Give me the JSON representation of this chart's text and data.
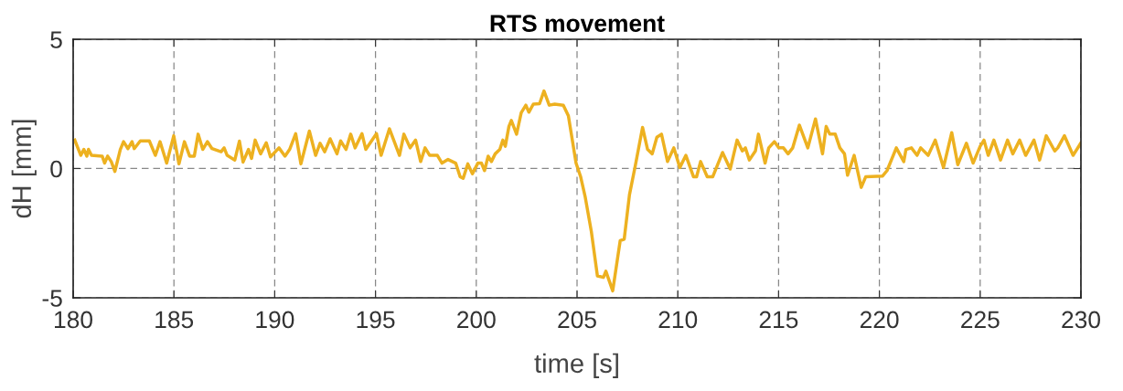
{
  "chart_data": {
    "type": "line",
    "title": "RTS movement",
    "xlabel": "time [s]",
    "ylabel": "dH [mm]",
    "xlim": [
      180,
      230
    ],
    "xticks": [
      180,
      185,
      190,
      195,
      200,
      205,
      210,
      215,
      220,
      225,
      230
    ],
    "ylim": [
      -5,
      5
    ],
    "yticks": [
      -5,
      0,
      5
    ],
    "grid": true,
    "line_style": "solid",
    "marker": "none",
    "series": [
      {
        "color": "#edb120",
        "x": [
          180.08,
          180.38,
          180.53,
          180.68,
          180.76,
          180.91,
          181.44,
          181.56,
          181.71,
          181.89,
          182.07,
          182.34,
          182.5,
          182.72,
          182.92,
          183.03,
          183.33,
          183.78,
          184.08,
          184.31,
          184.64,
          184.99,
          185.25,
          185.52,
          185.78,
          186.01,
          186.2,
          186.43,
          186.66,
          186.89,
          187.34,
          187.49,
          187.64,
          188.02,
          188.25,
          188.43,
          188.7,
          188.85,
          189.03,
          189.3,
          189.58,
          189.79,
          190.21,
          190.51,
          190.74,
          191.04,
          191.3,
          191.72,
          192.03,
          192.25,
          192.48,
          192.75,
          193.09,
          193.27,
          193.54,
          193.77,
          193.99,
          194.33,
          194.52,
          195.05,
          195.28,
          195.69,
          196.19,
          196.41,
          196.72,
          196.99,
          197.24,
          197.46,
          197.69,
          198.07,
          198.3,
          198.6,
          198.98,
          199.2,
          199.35,
          199.58,
          199.81,
          200.08,
          200.26,
          200.41,
          200.59,
          200.75,
          200.94,
          201.17,
          201.32,
          201.44,
          201.62,
          201.74,
          202.0,
          202.23,
          202.46,
          202.61,
          202.83,
          203.14,
          203.36,
          203.62,
          203.89,
          204.32,
          204.57,
          204.95,
          205.18,
          205.4,
          205.71,
          206.01,
          206.31,
          206.43,
          206.77,
          207.14,
          207.34,
          207.6,
          207.9,
          208.25,
          208.5,
          208.73,
          208.96,
          209.19,
          209.49,
          209.8,
          210.1,
          210.4,
          210.78,
          210.93,
          211.13,
          211.46,
          211.73,
          212.22,
          212.6,
          212.94,
          213.2,
          213.35,
          213.55,
          213.85,
          214.0,
          214.33,
          214.51,
          214.79,
          215.01,
          215.24,
          215.47,
          215.7,
          216.03,
          216.45,
          216.83,
          217.18,
          217.36,
          217.54,
          217.81,
          218.04,
          218.27,
          218.42,
          218.75,
          219.1,
          219.32,
          220.16,
          220.38,
          220.84,
          221.21,
          221.32,
          221.59,
          221.87,
          222.05,
          222.42,
          222.77,
          223.18,
          223.59,
          223.89,
          224.32,
          224.65,
          225.0,
          225.19,
          225.4,
          225.68,
          226.01,
          226.36,
          226.62,
          226.96,
          227.26,
          227.67,
          227.95,
          228.28,
          228.7,
          228.85,
          229.18,
          229.61,
          229.99
        ],
        "values": [
          1.1,
          0.51,
          0.74,
          0.48,
          0.74,
          0.51,
          0.48,
          0.21,
          0.48,
          0.27,
          -0.11,
          0.74,
          1.04,
          0.77,
          1.04,
          0.77,
          1.07,
          1.07,
          0.51,
          1.04,
          0.21,
          1.27,
          0.18,
          1.04,
          0.48,
          0.48,
          1.33,
          0.74,
          1.04,
          0.77,
          0.65,
          0.8,
          0.51,
          0.33,
          1.06,
          0.25,
          0.74,
          0.39,
          1.1,
          0.57,
          1.0,
          0.45,
          0.8,
          0.48,
          0.74,
          1.35,
          0.18,
          1.45,
          0.51,
          0.98,
          0.65,
          1.15,
          0.57,
          1.07,
          0.74,
          1.33,
          0.8,
          1.35,
          0.74,
          1.35,
          0.51,
          1.54,
          0.51,
          1.33,
          0.8,
          1.1,
          0.27,
          0.8,
          0.51,
          0.51,
          0.21,
          0.35,
          0.21,
          -0.32,
          -0.38,
          0.18,
          -0.2,
          0.21,
          0.21,
          -0.08,
          0.48,
          0.27,
          0.57,
          0.74,
          1.1,
          0.86,
          1.63,
          1.86,
          1.33,
          2.16,
          2.45,
          2.18,
          2.49,
          2.51,
          3.0,
          2.45,
          2.49,
          2.45,
          2.04,
          0.21,
          -0.32,
          -1.08,
          -2.44,
          -4.15,
          -4.21,
          -3.97,
          -4.73,
          -2.79,
          -2.73,
          -1.02,
          0.15,
          1.59,
          0.74,
          0.57,
          1.21,
          1.33,
          0.27,
          0.8,
          0.04,
          0.51,
          -0.32,
          -0.32,
          0.27,
          -0.32,
          -0.32,
          0.62,
          -0.02,
          1.1,
          0.68,
          0.8,
          0.33,
          0.68,
          1.33,
          0.21,
          0.8,
          1.04,
          0.8,
          0.8,
          0.57,
          0.8,
          1.68,
          0.8,
          1.92,
          0.57,
          1.63,
          1.33,
          1.33,
          0.8,
          0.57,
          -0.26,
          0.51,
          -0.73,
          -0.32,
          -0.29,
          -0.08,
          0.8,
          0.27,
          0.74,
          0.8,
          0.51,
          0.8,
          0.51,
          1.1,
          0.04,
          1.39,
          0.15,
          0.98,
          0.21,
          0.86,
          1.1,
          0.51,
          1.1,
          0.33,
          1.1,
          0.57,
          1.1,
          0.51,
          1.1,
          0.33,
          1.27,
          0.68,
          0.8,
          1.27,
          0.51,
          0.98
        ]
      }
    ]
  }
}
